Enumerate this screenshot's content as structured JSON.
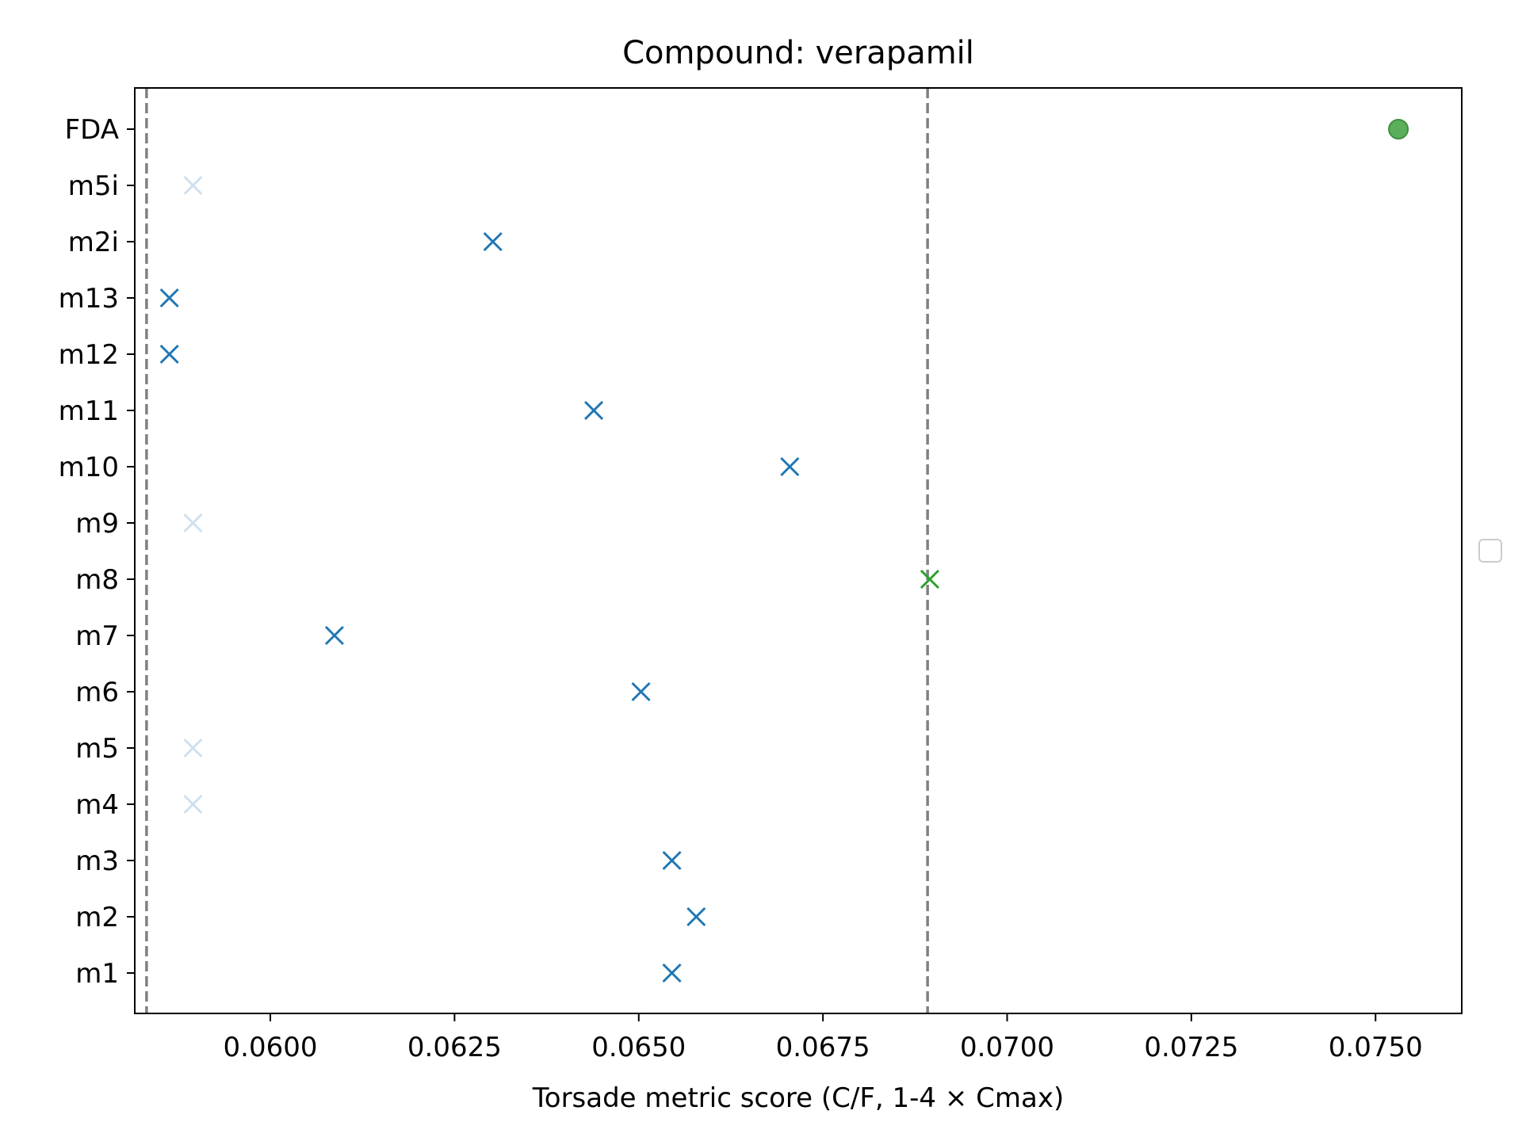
{
  "chart_data": {
    "type": "scatter",
    "title": "Compound: verapamil",
    "xlabel": "Torsade metric score (C/F, 1-4 × Cmax)",
    "ylabel": "",
    "xlim": [
      0.05816,
      0.07617
    ],
    "xticks": [
      "0.0600",
      "0.0625",
      "0.0650",
      "0.0675",
      "0.0700",
      "0.0725",
      "0.0750"
    ],
    "xtick_values": [
      0.06,
      0.0625,
      0.065,
      0.0675,
      0.07,
      0.0725,
      0.075
    ],
    "categories": [
      "m1",
      "m2",
      "m3",
      "m4",
      "m5",
      "m6",
      "m7",
      "m8",
      "m9",
      "m10",
      "m11",
      "m12",
      "m13",
      "m2i",
      "m5i",
      "FDA"
    ],
    "grid": false,
    "legend": "right (empty)",
    "reference_lines": [
      0.05832,
      0.06892
    ],
    "series": [
      {
        "marker": "x",
        "points": [
          {
            "category": "m1",
            "x": 0.06545,
            "color": "#1f77b4"
          },
          {
            "category": "m2",
            "x": 0.06578,
            "color": "#1f77b4"
          },
          {
            "category": "m3",
            "x": 0.06545,
            "color": "#1f77b4"
          },
          {
            "category": "m4",
            "x": 0.05895,
            "color": "#cfe0ee"
          },
          {
            "category": "m5",
            "x": 0.05895,
            "color": "#cfe0ee"
          },
          {
            "category": "m6",
            "x": 0.06503,
            "color": "#1f77b4"
          },
          {
            "category": "m7",
            "x": 0.06087,
            "color": "#1f77b4"
          },
          {
            "category": "m8",
            "x": 0.06895,
            "color": "#2ca02c"
          },
          {
            "category": "m9",
            "x": 0.05895,
            "color": "#cfe0ee"
          },
          {
            "category": "m10",
            "x": 0.06705,
            "color": "#1f77b4"
          },
          {
            "category": "m11",
            "x": 0.06439,
            "color": "#1f77b4"
          },
          {
            "category": "m12",
            "x": 0.05863,
            "color": "#1f77b4"
          },
          {
            "category": "m13",
            "x": 0.05863,
            "color": "#1f77b4"
          },
          {
            "category": "m2i",
            "x": 0.06302,
            "color": "#1f77b4"
          },
          {
            "category": "m5i",
            "x": 0.05895,
            "color": "#cfe0ee"
          }
        ]
      },
      {
        "marker": "circle",
        "points": [
          {
            "category": "FDA",
            "x": 0.07531,
            "color": "#5aaf5a"
          }
        ]
      }
    ],
    "colors": {
      "axis": "#000000",
      "reference_line": "#808080",
      "legend_box": "#cccccc"
    }
  }
}
